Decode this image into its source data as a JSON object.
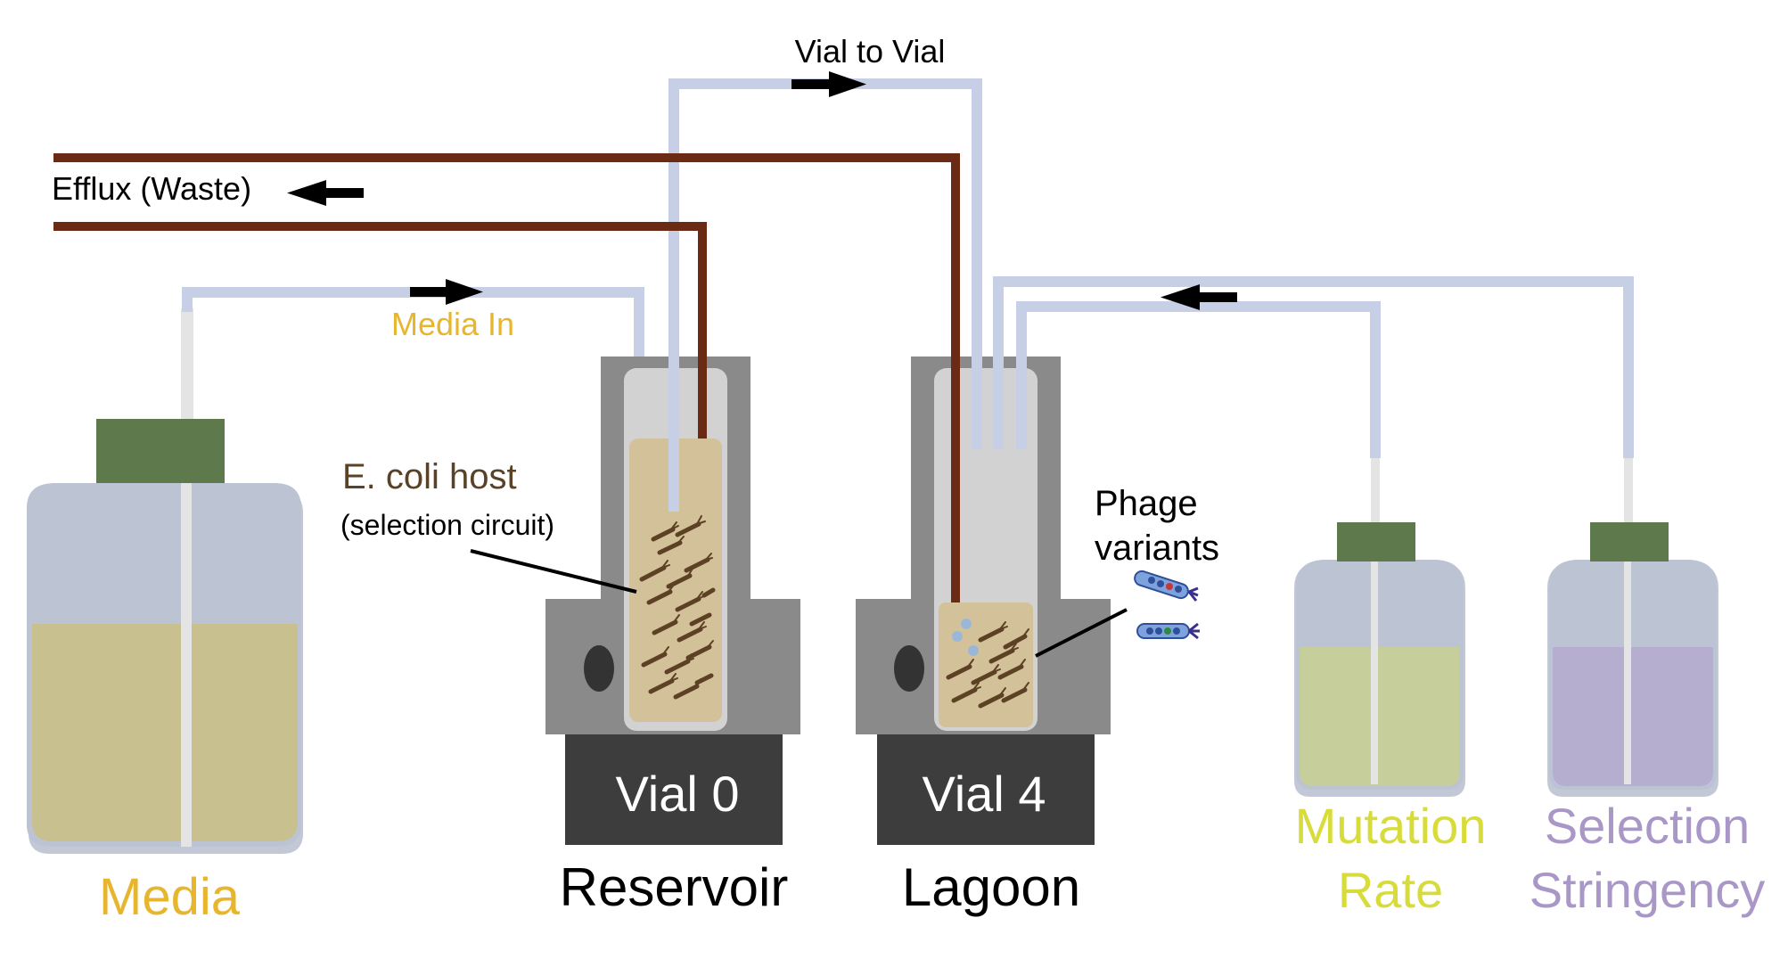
{
  "labels": {
    "vial_to_vial": "Vial to Vial",
    "efflux": "Efflux (Waste)",
    "media_in": "Media In",
    "host_line1": "E. coli host",
    "host_line2": "(selection circuit)",
    "phage_line1": "Phage",
    "phage_line2": "variants",
    "vial0": "Vial 0",
    "vial4": "Vial 4",
    "reservoir": "Reservoir",
    "lagoon": "Lagoon",
    "media": "Media",
    "mutation_line1": "Mutation",
    "mutation_line2": "Rate",
    "selection_line1": "Selection",
    "selection_line2": "Stringency"
  },
  "colors": {
    "tube": "#c7cfe6",
    "waste_tube": "#6b2a14",
    "media_text": "#e8b62e",
    "host_text": "#5a4226",
    "mutation_text": "#d8dc3a",
    "selection_text": "#a997c8",
    "cap": "#5e7a4c",
    "holder": "#8a8a8a",
    "base": "#3d3d3d",
    "culture": "#d3c199",
    "media_fluid": "#c9c08f",
    "mutation_fluid": "#c6cf9b",
    "selection_fluid": "#b5aecf",
    "bottle": "#bcc3d3"
  }
}
